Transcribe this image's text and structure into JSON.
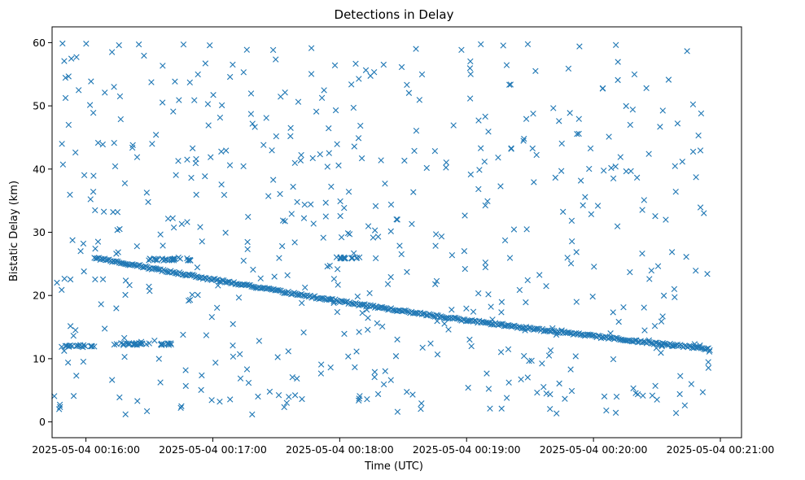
{
  "chart_data": {
    "type": "scatter",
    "title": "Detections in Delay",
    "xlabel": "Time (UTC)",
    "ylabel": "Bistatic Delay (km)",
    "marker": "x",
    "color": "#1f77b4",
    "x_unit": "seconds after 2025-05-04 00:16:00",
    "xlim": [
      -16,
      310
    ],
    "ylim": [
      -2.5,
      62.5
    ],
    "xticks": [
      {
        "value": 0,
        "label": "2025-05-04 00:16:00"
      },
      {
        "value": 60,
        "label": "2025-05-04 00:17:00"
      },
      {
        "value": 120,
        "label": "2025-05-04 00:18:00"
      },
      {
        "value": 180,
        "label": "2025-05-04 00:19:00"
      },
      {
        "value": 240,
        "label": "2025-05-04 00:20:00"
      },
      {
        "value": 300,
        "label": "2025-05-04 00:21:00"
      }
    ],
    "yticks": [
      {
        "value": 0,
        "label": "0"
      },
      {
        "value": 10,
        "label": "10"
      },
      {
        "value": 20,
        "label": "20"
      },
      {
        "value": 30,
        "label": "30"
      },
      {
        "value": 40,
        "label": "40"
      },
      {
        "value": 50,
        "label": "50"
      },
      {
        "value": 60,
        "label": "60"
      }
    ],
    "time_range": [
      -15,
      295
    ],
    "track": {
      "description": "dense target track",
      "start": [
        4,
        26.0
      ],
      "end": [
        295,
        11.5
      ]
    },
    "secondary_tracks": [
      {
        "x_range": [
          26,
          52
        ],
        "y": 25.7
      },
      {
        "x_range": [
          -12,
          4
        ],
        "y": 12.0
      },
      {
        "x_range": [
          12,
          42
        ],
        "y": 12.3
      },
      {
        "x_range": [
          118,
          130
        ],
        "y": 26.0
      }
    ],
    "clutter_count": 560,
    "clutter_y_range": [
      1,
      60
    ]
  }
}
